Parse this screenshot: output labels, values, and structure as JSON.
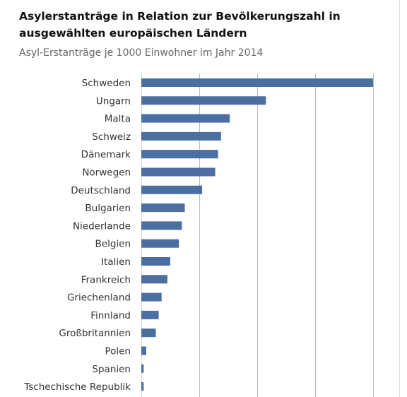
{
  "chart_data": {
    "type": "bar",
    "orientation": "horizontal",
    "title": "Asylerstanträge in Relation zur Bevölkerungszahl in ausgewählten europäischen Ländern",
    "subtitle": "Asyl-Erstanträge je 1000 Einwohner im Jahr 2014",
    "categories": [
      "Schweden",
      "Ungarn",
      "Malta",
      "Schweiz",
      "Dänemark",
      "Norwegen",
      "Deutschland",
      "Bulgarien",
      "Niederlande",
      "Belgien",
      "Italien",
      "Frankreich",
      "Griechenland",
      "Finnland",
      "Großbritannien",
      "Polen",
      "Spanien",
      "Tschechische Republik"
    ],
    "values": [
      8.0,
      4.3,
      3.05,
      2.75,
      2.65,
      2.55,
      2.1,
      1.5,
      1.4,
      1.3,
      1.0,
      0.9,
      0.7,
      0.6,
      0.5,
      0.17,
      0.08,
      0.08
    ],
    "xlim": [
      0,
      8
    ],
    "gridlines": [
      2,
      4,
      6,
      8
    ],
    "grid": true,
    "legend": "none",
    "bar_color": "#4a6fa0",
    "grid_color": "#bbbbbb"
  }
}
